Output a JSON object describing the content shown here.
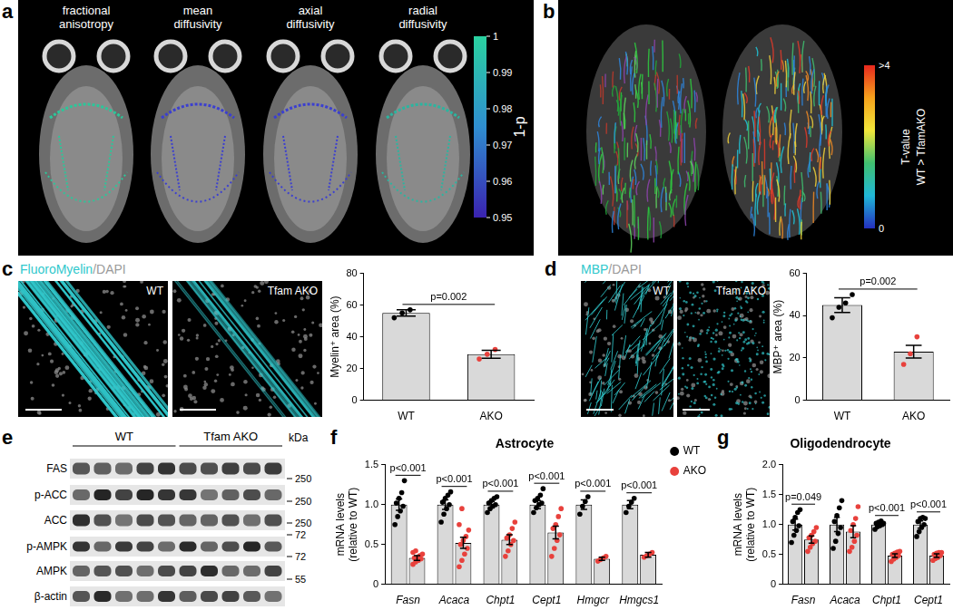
{
  "panel_labels": [
    "a",
    "b",
    "c",
    "d",
    "e",
    "f",
    "g"
  ],
  "panel_a": {
    "maps": [
      [
        "fractional",
        "anisotropy"
      ],
      [
        "mean",
        "diffusivity"
      ],
      [
        "axial",
        "diffusivity"
      ],
      [
        "radial",
        "diffusivity"
      ]
    ],
    "colorbar": {
      "label": "1-p",
      "range": [
        0.95,
        1
      ],
      "ticks": [
        1,
        0.99,
        0.98,
        0.97,
        0.96,
        0.95
      ]
    }
  },
  "panel_b": {
    "colorbar": {
      "label": [
        "T-value",
        "WT > TfamAKO"
      ],
      "range": [
        0,
        4
      ],
      "ticks": [
        {
          "value": 4,
          "label": ">4"
        },
        0
      ]
    }
  },
  "panel_c": {
    "image_labels": [
      {
        "text": "FluoroMyelin",
        "color": "#30c8cc"
      },
      {
        "text": "/DAPI",
        "color": "#9a9a9a"
      }
    ],
    "images": [
      "WT",
      "Tfam AKO"
    ]
  },
  "panel_d": {
    "image_labels": [
      {
        "text": "MBP",
        "color": "#30c8cc"
      },
      {
        "text": "/DAPI",
        "color": "#9a9a9a"
      }
    ],
    "images": [
      "WT",
      "Tfam AKO"
    ]
  },
  "panel_e": {
    "groups": [
      {
        "label": "WT",
        "lanes": 5
      },
      {
        "label": "Tfam AKO",
        "lanes": 5
      }
    ],
    "rows": [
      "FAS",
      "p-ACC",
      "ACC",
      "p-AMPK",
      "AMPK",
      "β-actin"
    ],
    "unit": "kDa",
    "markers": [
      250,
      250,
      250,
      72,
      72,
      55
    ]
  },
  "chart_data": [
    {
      "type": "bar",
      "categories": [
        "WT",
        "AKO"
      ],
      "values": [
        55,
        29
      ],
      "errors": [
        2,
        2.5
      ],
      "points": [
        [
          52,
          55,
          57
        ],
        [
          26,
          29,
          32
        ]
      ],
      "colors": [
        "#000000",
        "#e8413c"
      ],
      "y_label": "Myelin⁺ area (%)",
      "ylim": [
        0,
        80
      ],
      "yticks": [
        0,
        20,
        40,
        60,
        80
      ],
      "grid": false,
      "annotations": [
        {
          "text": "p=0.002",
          "categories": [
            "WT",
            "AKO"
          ]
        }
      ]
    },
    {
      "type": "bar",
      "categories": [
        "WT",
        "AKO"
      ],
      "values": [
        45,
        23
      ],
      "errors": [
        3.5,
        3
      ],
      "points": [
        [
          39,
          44,
          46,
          50
        ],
        [
          17,
          22,
          30
        ]
      ],
      "colors": [
        "#000000",
        "#e8413c"
      ],
      "y_label": "MBP⁺ area (%)",
      "ylim": [
        0,
        60
      ],
      "yticks": [
        0,
        20,
        40,
        60
      ],
      "grid": false,
      "annotations": [
        {
          "text": "p=0.002",
          "categories": [
            "WT",
            "AKO"
          ]
        }
      ]
    },
    {
      "type": "bar",
      "title": "Astrocyte",
      "y_label": [
        "mRNA levels",
        "(relative to WT)"
      ],
      "categories": [
        "Fasn",
        "Acaca",
        "Chpt1",
        "Cept1",
        "Hmgcr",
        "Hmgcs1"
      ],
      "series": [
        {
          "name": "WT",
          "color": "#000000",
          "values": [
            1,
            1,
            1,
            1,
            1,
            1
          ],
          "errors": [
            0.07,
            0.06,
            0.04,
            0.05,
            0.06,
            0.05
          ],
          "points": [
            [
              0.75,
              0.85,
              0.92,
              0.98,
              1.02,
              1.08,
              1.15,
              1.3
            ],
            [
              0.78,
              0.88,
              0.95,
              1.0,
              1.03,
              1.08,
              1.12,
              1.16
            ],
            [
              0.9,
              0.95,
              0.98,
              1.0,
              1.02,
              1.05,
              1.08,
              1.1
            ],
            [
              0.9,
              0.96,
              1.0,
              1.02,
              1.05,
              1.08,
              1.12,
              1.2
            ],
            [
              0.88,
              0.98,
              1.04,
              1.1
            ],
            [
              0.9,
              0.98,
              1.03,
              1.08
            ]
          ]
        },
        {
          "name": "AKO",
          "color": "#e8413c",
          "values": [
            0.33,
            0.52,
            0.56,
            0.65,
            0.32,
            0.37
          ],
          "errors": [
            0.03,
            0.07,
            0.06,
            0.08,
            0.02,
            0.03
          ],
          "points": [
            [
              0.25,
              0.28,
              0.3,
              0.32,
              0.33,
              0.34,
              0.36,
              0.38,
              0.4,
              0.42
            ],
            [
              0.22,
              0.3,
              0.38,
              0.45,
              0.5,
              0.55,
              0.6,
              0.68,
              0.75,
              0.95
            ],
            [
              0.35,
              0.42,
              0.5,
              0.55,
              0.58,
              0.62,
              0.7,
              0.78
            ],
            [
              0.35,
              0.45,
              0.55,
              0.62,
              0.7,
              0.75,
              0.85,
              0.95
            ],
            [
              0.29,
              0.31,
              0.33,
              0.35
            ],
            [
              0.34,
              0.36,
              0.38,
              0.4
            ]
          ]
        }
      ],
      "ylim": [
        0,
        1.5
      ],
      "yticks": [
        0,
        0.5,
        {
          "value": 1,
          "label": "1.0"
        },
        1.5
      ],
      "grid": false,
      "legend": "top right",
      "annotations": [
        {
          "text": "p<0.001",
          "category": "Fasn"
        },
        {
          "text": "p<0.001",
          "category": "Acaca"
        },
        {
          "text": "p<0.001",
          "category": "Chpt1"
        },
        {
          "text": "p<0.001",
          "category": "Cept1"
        },
        {
          "text": "p<0.001",
          "category": "Hmgcr"
        },
        {
          "text": "p<0.001",
          "category": "Hmgcs1"
        }
      ]
    },
    {
      "type": "bar",
      "title": "Oligodendrocyte",
      "y_label": [
        "mRNA levels",
        "(relative to WT)"
      ],
      "categories": [
        "Fasn",
        "Acaca",
        "Chpt1",
        "Cept1"
      ],
      "series": [
        {
          "name": "WT",
          "color": "#000000",
          "values": [
            1,
            1,
            1,
            1
          ],
          "errors": [
            0.09,
            0.12,
            0.03,
            0.06
          ],
          "points": [
            [
              0.7,
              0.82,
              0.9,
              0.98,
              1.05,
              1.12,
              1.2,
              1.25
            ],
            [
              0.6,
              0.72,
              0.85,
              0.95,
              1.05,
              1.15,
              1.28,
              1.4
            ],
            [
              0.92,
              0.96,
              0.98,
              1.0,
              1.02,
              1.04,
              1.06,
              1.02
            ],
            [
              0.8,
              0.88,
              0.95,
              1.0,
              1.05,
              1.1,
              1.12,
              1.1
            ]
          ]
        },
        {
          "name": "AKO",
          "color": "#e8413c",
          "values": [
            0.75,
            0.88,
            0.48,
            0.48
          ],
          "errors": [
            0.06,
            0.1,
            0.03,
            0.03
          ],
          "points": [
            [
              0.55,
              0.62,
              0.68,
              0.72,
              0.78,
              0.82,
              0.88,
              0.95
            ],
            [
              0.55,
              0.62,
              0.72,
              0.82,
              0.9,
              1.0,
              1.1,
              1.3
            ],
            [
              0.38,
              0.42,
              0.45,
              0.48,
              0.5,
              0.52,
              0.54,
              0.55
            ],
            [
              0.4,
              0.43,
              0.45,
              0.48,
              0.5,
              0.52,
              0.53,
              0.53
            ]
          ]
        }
      ],
      "ylim": [
        0,
        2
      ],
      "yticks": [
        0,
        0.5,
        {
          "value": 1,
          "label": "1.0"
        },
        1.5,
        {
          "value": 2,
          "label": "2.0"
        }
      ],
      "grid": false,
      "annotations": [
        {
          "text": "p=0.049",
          "category": "Fasn"
        },
        {
          "text": "p<0.001",
          "category": "Chpt1"
        },
        {
          "text": "p<0.001",
          "category": "Cept1"
        }
      ]
    }
  ]
}
